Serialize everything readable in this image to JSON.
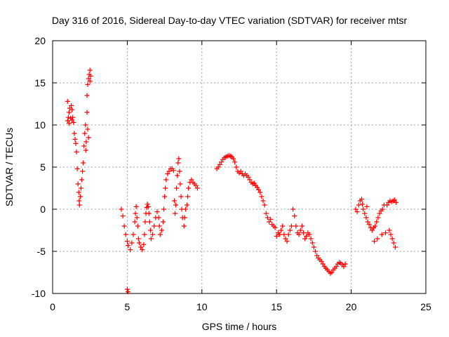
{
  "chart_data": {
    "type": "scatter",
    "title": "Day 316 of 2016, Sidereal Day-to-day VTEC variation (SDTVAR) for receiver mtsr",
    "xlabel": "GPS time / hours",
    "ylabel": "SDTVAR / TECUs",
    "xlim": [
      0,
      25
    ],
    "ylim": [
      -10,
      20
    ],
    "xticks": [
      0,
      5,
      10,
      15,
      20,
      25
    ],
    "xtick_labels": [
      "0",
      "5",
      "10",
      "15",
      "20",
      "25"
    ],
    "yticks": [
      -10,
      -5,
      0,
      5,
      10,
      15,
      20
    ],
    "ytick_labels": [
      "-10",
      "-5",
      "0",
      "5",
      "10",
      "15",
      "20"
    ],
    "grid": true,
    "marker": "+",
    "color": "#ff0000",
    "series": [
      {
        "name": "SDTVAR",
        "points": [
          [
            1.0,
            12.8
          ],
          [
            1.0,
            10.5
          ],
          [
            1.05,
            10.9
          ],
          [
            1.1,
            11.5
          ],
          [
            1.1,
            10.2
          ],
          [
            1.15,
            12.0
          ],
          [
            1.2,
            10.8
          ],
          [
            1.25,
            12.3
          ],
          [
            1.3,
            11.8
          ],
          [
            1.3,
            10.6
          ],
          [
            1.35,
            10.9
          ],
          [
            1.4,
            10.3
          ],
          [
            1.45,
            9.0
          ],
          [
            1.5,
            8.3
          ],
          [
            1.55,
            7.8
          ],
          [
            1.6,
            6.8
          ],
          [
            1.65,
            4.8
          ],
          [
            1.7,
            3.0
          ],
          [
            1.75,
            2.0
          ],
          [
            1.78,
            1.0
          ],
          [
            1.8,
            0.5
          ],
          [
            1.85,
            1.5
          ],
          [
            1.9,
            2.5
          ],
          [
            1.95,
            3.5
          ],
          [
            2.0,
            4.5
          ],
          [
            2.05,
            5.5
          ],
          [
            2.1,
            7.5
          ],
          [
            2.15,
            9.0
          ],
          [
            2.2,
            10.0
          ],
          [
            2.22,
            7.0
          ],
          [
            2.25,
            8.0
          ],
          [
            2.3,
            11.5
          ],
          [
            2.3,
            13.5
          ],
          [
            2.35,
            14.8
          ],
          [
            2.35,
            9.5
          ],
          [
            2.4,
            15.5
          ],
          [
            2.4,
            8.5
          ],
          [
            2.45,
            16.0
          ],
          [
            2.5,
            16.5
          ],
          [
            2.5,
            15.2
          ],
          [
            2.55,
            15.8
          ],
          [
            4.6,
            0.0
          ],
          [
            4.7,
            -0.8
          ],
          [
            4.8,
            -2.0
          ],
          [
            4.9,
            -3.0
          ],
          [
            5.0,
            -3.8
          ],
          [
            5.05,
            -4.3
          ],
          [
            5.0,
            -9.5
          ],
          [
            5.05,
            -9.8
          ],
          [
            5.2,
            -4.8
          ],
          [
            5.3,
            -4.0
          ],
          [
            5.4,
            -3.0
          ],
          [
            5.5,
            -1.5
          ],
          [
            5.55,
            -0.5
          ],
          [
            5.6,
            0.3
          ],
          [
            5.65,
            -1.0
          ],
          [
            5.7,
            -2.0
          ],
          [
            5.75,
            -3.5
          ],
          [
            5.8,
            -4.0
          ],
          [
            5.9,
            -4.5
          ],
          [
            6.0,
            -4.8
          ],
          [
            6.1,
            -4.2
          ],
          [
            6.15,
            -3.0
          ],
          [
            6.2,
            -1.5
          ],
          [
            6.25,
            -0.5
          ],
          [
            6.3,
            0.2
          ],
          [
            6.35,
            0.6
          ],
          [
            6.4,
            0.3
          ],
          [
            6.45,
            -0.5
          ],
          [
            6.5,
            -1.5
          ],
          [
            6.55,
            -2.5
          ],
          [
            6.6,
            -3.5
          ],
          [
            6.7,
            -3.0
          ],
          [
            6.8,
            -2.0
          ],
          [
            6.9,
            -1.0
          ],
          [
            7.0,
            -0.3
          ],
          [
            7.1,
            -1.0
          ],
          [
            7.15,
            -2.0
          ],
          [
            7.2,
            -3.0
          ],
          [
            7.3,
            -2.5
          ],
          [
            7.4,
            -1.5
          ],
          [
            7.45,
            0.0
          ],
          [
            7.5,
            1.5
          ],
          [
            7.55,
            2.5
          ],
          [
            7.6,
            3.5
          ],
          [
            7.7,
            4.2
          ],
          [
            7.8,
            4.5
          ],
          [
            7.9,
            4.8
          ],
          [
            8.0,
            4.8
          ],
          [
            8.1,
            4.6
          ],
          [
            8.15,
            1.0
          ],
          [
            8.2,
            -0.5
          ],
          [
            8.25,
            0.5
          ],
          [
            8.3,
            2.5
          ],
          [
            8.35,
            4.0
          ],
          [
            8.4,
            5.5
          ],
          [
            8.45,
            6.0
          ],
          [
            8.5,
            4.5
          ],
          [
            8.55,
            3.0
          ],
          [
            8.6,
            1.5
          ],
          [
            8.65,
            0.0
          ],
          [
            8.7,
            -1.0
          ],
          [
            8.8,
            -2.0
          ],
          [
            8.85,
            -1.0
          ],
          [
            8.9,
            0.0
          ],
          [
            9.0,
            0.5
          ],
          [
            9.05,
            1.5
          ],
          [
            9.1,
            2.5
          ],
          [
            9.2,
            3.2
          ],
          [
            9.3,
            3.5
          ],
          [
            9.4,
            3.2
          ],
          [
            9.5,
            3.0
          ],
          [
            9.6,
            2.8
          ],
          [
            9.7,
            2.5
          ],
          [
            11.0,
            4.8
          ],
          [
            11.1,
            5.0
          ],
          [
            11.2,
            5.3
          ],
          [
            11.3,
            5.6
          ],
          [
            11.4,
            5.9
          ],
          [
            11.5,
            6.1
          ],
          [
            11.6,
            6.2
          ],
          [
            11.7,
            6.3
          ],
          [
            11.8,
            6.4
          ],
          [
            11.9,
            6.3
          ],
          [
            12.0,
            6.2
          ],
          [
            12.1,
            6.0
          ],
          [
            12.2,
            5.6
          ],
          [
            12.3,
            5.0
          ],
          [
            12.4,
            4.5
          ],
          [
            12.5,
            4.3
          ],
          [
            12.6,
            4.5
          ],
          [
            12.7,
            4.2
          ],
          [
            12.8,
            4.0
          ],
          [
            12.9,
            4.2
          ],
          [
            13.0,
            4.0
          ],
          [
            13.1,
            3.8
          ],
          [
            13.2,
            3.5
          ],
          [
            13.3,
            3.2
          ],
          [
            13.4,
            3.0
          ],
          [
            13.5,
            3.1
          ],
          [
            13.6,
            2.8
          ],
          [
            13.7,
            2.6
          ],
          [
            13.8,
            2.3
          ],
          [
            13.9,
            2.0
          ],
          [
            14.0,
            1.5
          ],
          [
            14.1,
            1.0
          ],
          [
            14.2,
            0.5
          ],
          [
            14.3,
            -0.5
          ],
          [
            14.4,
            -1.0
          ],
          [
            14.5,
            -1.5
          ],
          [
            14.6,
            -1.2
          ],
          [
            14.7,
            -1.8
          ],
          [
            14.8,
            -2.0
          ],
          [
            14.9,
            -2.2
          ],
          [
            15.0,
            -3.2
          ],
          [
            15.1,
            -2.8
          ],
          [
            15.2,
            -3.0
          ],
          [
            15.3,
            -2.5
          ],
          [
            15.4,
            -2.0
          ],
          [
            15.5,
            -3.0
          ],
          [
            15.6,
            -3.5
          ],
          [
            15.7,
            -3.8
          ],
          [
            15.8,
            -3.0
          ],
          [
            15.9,
            -2.5
          ],
          [
            16.0,
            -2.0
          ],
          [
            16.1,
            0.0
          ],
          [
            16.2,
            -0.8
          ],
          [
            16.3,
            -2.0
          ],
          [
            16.4,
            -2.8
          ],
          [
            16.5,
            -3.0
          ],
          [
            16.6,
            -2.5
          ],
          [
            16.7,
            -2.0
          ],
          [
            16.8,
            -2.8
          ],
          [
            16.9,
            -3.5
          ],
          [
            17.0,
            -3.2
          ],
          [
            17.1,
            -2.8
          ],
          [
            17.2,
            -3.0
          ],
          [
            17.3,
            -3.5
          ],
          [
            17.4,
            -4.0
          ],
          [
            17.5,
            -4.5
          ],
          [
            17.6,
            -5.0
          ],
          [
            17.7,
            -5.5
          ],
          [
            17.8,
            -5.8
          ],
          [
            17.9,
            -6.0
          ],
          [
            18.0,
            -6.2
          ],
          [
            18.1,
            -6.5
          ],
          [
            18.2,
            -6.8
          ],
          [
            18.3,
            -7.0
          ],
          [
            18.4,
            -7.2
          ],
          [
            18.5,
            -7.4
          ],
          [
            18.6,
            -7.6
          ],
          [
            18.7,
            -7.5
          ],
          [
            18.8,
            -7.2
          ],
          [
            18.9,
            -7.0
          ],
          [
            19.0,
            -6.8
          ],
          [
            19.1,
            -6.5
          ],
          [
            19.2,
            -6.3
          ],
          [
            19.3,
            -6.4
          ],
          [
            19.4,
            -6.6
          ],
          [
            19.5,
            -6.8
          ],
          [
            19.6,
            -6.5
          ],
          [
            20.3,
            0.0
          ],
          [
            20.4,
            -0.3
          ],
          [
            20.5,
            0.5
          ],
          [
            20.6,
            1.0
          ],
          [
            20.7,
            1.2
          ],
          [
            20.75,
            0.6
          ],
          [
            20.8,
            0.0
          ],
          [
            20.9,
            -0.5
          ],
          [
            21.0,
            -1.0
          ],
          [
            21.05,
            0.3
          ],
          [
            21.1,
            -1.5
          ],
          [
            21.2,
            -1.8
          ],
          [
            21.3,
            -2.2
          ],
          [
            21.4,
            -2.5
          ],
          [
            21.5,
            -2.2
          ],
          [
            21.55,
            -3.8
          ],
          [
            21.6,
            -2.0
          ],
          [
            21.7,
            -1.5
          ],
          [
            21.75,
            -3.5
          ],
          [
            21.8,
            -1.0
          ],
          [
            21.9,
            -0.5
          ],
          [
            22.0,
            -0.2
          ],
          [
            22.05,
            -3.0
          ],
          [
            22.1,
            0.0
          ],
          [
            22.2,
            0.5
          ],
          [
            22.3,
            -2.8
          ],
          [
            22.4,
            0.5
          ],
          [
            22.5,
            0.8
          ],
          [
            22.55,
            -2.5
          ],
          [
            22.6,
            1.0
          ],
          [
            22.65,
            -3.0
          ],
          [
            22.7,
            0.9
          ],
          [
            22.75,
            -3.5
          ],
          [
            22.8,
            1.0
          ],
          [
            22.85,
            -4.0
          ],
          [
            22.9,
            1.1
          ],
          [
            22.95,
            -4.5
          ],
          [
            23.0,
            0.8
          ]
        ]
      }
    ]
  }
}
